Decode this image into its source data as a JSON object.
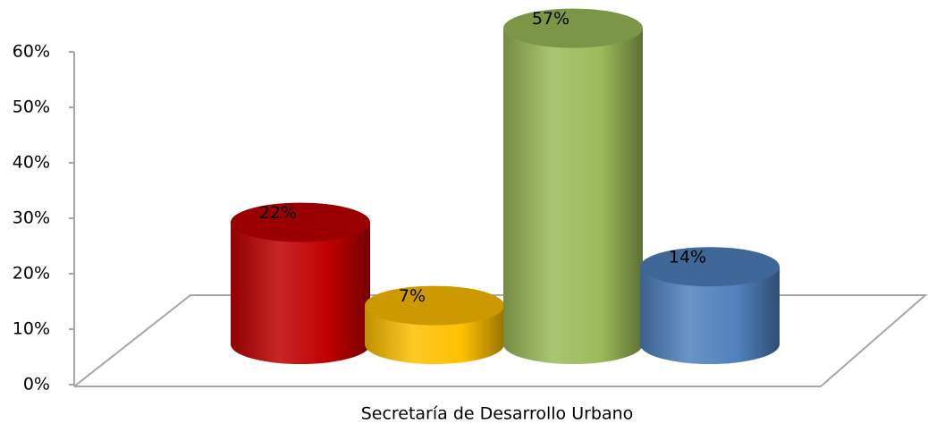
{
  "chart_data": {
    "type": "cylinder",
    "categories": [
      "Secretaría de Desarrollo Urbano"
    ],
    "series": [
      {
        "color": "#c00000",
        "values": [
          22
        ],
        "value_labels": [
          "22%"
        ]
      },
      {
        "color": "#ffc000",
        "values": [
          7
        ],
        "value_labels": [
          "7%"
        ]
      },
      {
        "color": "#9bbb59",
        "values": [
          57
        ],
        "value_labels": [
          "57%"
        ]
      },
      {
        "color": "#4f81bd",
        "values": [
          14
        ],
        "value_labels": [
          "14%"
        ]
      }
    ],
    "ylim": [
      0,
      60
    ],
    "yticks": [
      {
        "value": 0,
        "label": "0%"
      },
      {
        "value": 10,
        "label": "10%"
      },
      {
        "value": 20,
        "label": "20%"
      },
      {
        "value": 30,
        "label": "30%"
      },
      {
        "value": 40,
        "label": "40%"
      },
      {
        "value": 50,
        "label": "50%"
      },
      {
        "value": 60,
        "label": "60%"
      }
    ]
  }
}
